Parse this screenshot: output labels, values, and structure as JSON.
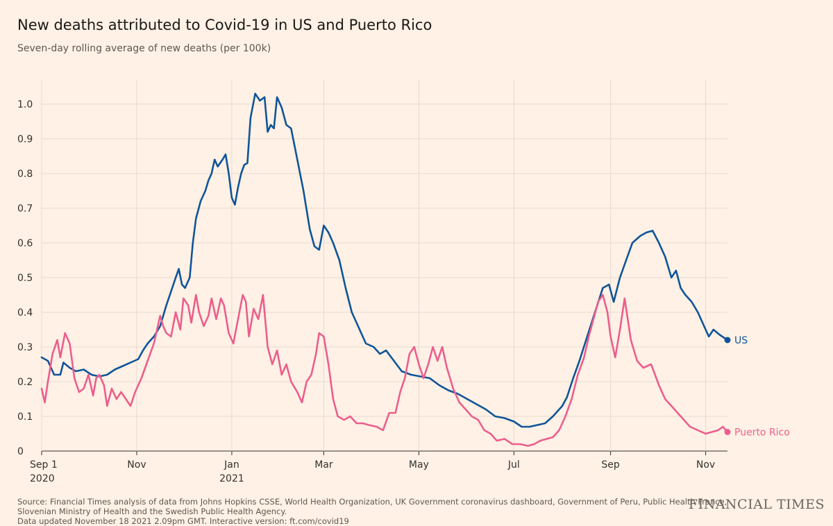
{
  "header": {
    "title": "New deaths attributed to Covid-19 in US and Puerto Rico",
    "subtitle": "Seven-day rolling average of new deaths (per 100k)"
  },
  "footer": {
    "source_line1": "Source: Financial Times analysis of data from Johns Hopkins CSSE, World Health Organization, UK Government coronavirus dashboard, Government of Peru, Public Health France,",
    "source_line2": "Slovenian Ministry of Health and the Swedish Public Health Agency.",
    "updated": "Data updated November 18 2021 2.09pm GMT. Interactive version: ft.com/covid19"
  },
  "logo": "FINANCIAL TIMES",
  "colors": {
    "background": "#fff1e5",
    "grid": "#e6d9ce",
    "us": "#0f5499",
    "puerto_rico": "#eb5e8d"
  },
  "chart_data": {
    "type": "line",
    "title": "New deaths attributed to Covid-19 in US and Puerto Rico",
    "subtitle": "Seven-day rolling average of new deaths (per 100k)",
    "xlabel": "",
    "ylabel": "",
    "x_ticks": [
      {
        "date": "2020-09-01",
        "label": "Sep 1",
        "sublabel": "2020"
      },
      {
        "date": "2020-11-01",
        "label": "Nov",
        "sublabel": ""
      },
      {
        "date": "2021-01-01",
        "label": "Jan",
        "sublabel": "2021"
      },
      {
        "date": "2021-03-01",
        "label": "Mar",
        "sublabel": ""
      },
      {
        "date": "2021-05-01",
        "label": "May",
        "sublabel": ""
      },
      {
        "date": "2021-07-01",
        "label": "Jul",
        "sublabel": ""
      },
      {
        "date": "2021-09-01",
        "label": "Sep",
        "sublabel": ""
      },
      {
        "date": "2021-11-01",
        "label": "Nov",
        "sublabel": ""
      }
    ],
    "xlim": [
      "2020-09-01",
      "2021-11-15"
    ],
    "ylim": [
      0,
      1.05
    ],
    "y_ticks": [
      0,
      0.1,
      0.2,
      0.3,
      0.4,
      0.5,
      0.6,
      0.7,
      0.8,
      0.9,
      1.0
    ],
    "y_tick_labels": [
      "0",
      "0.1",
      "0.2",
      "0.3",
      "0.4",
      "0.5",
      "0.6",
      "0.7",
      "0.8",
      "0.9",
      "1.0"
    ],
    "grid": true,
    "legend": "end-of-line labels",
    "series": [
      {
        "name": "US",
        "color": "#0f5499",
        "points": [
          [
            "2020-09-01",
            0.27
          ],
          [
            "2020-09-05",
            0.26
          ],
          [
            "2020-09-09",
            0.22
          ],
          [
            "2020-09-13",
            0.22
          ],
          [
            "2020-09-15",
            0.255
          ],
          [
            "2020-09-19",
            0.24
          ],
          [
            "2020-09-23",
            0.23
          ],
          [
            "2020-09-28",
            0.235
          ],
          [
            "2020-10-03",
            0.22
          ],
          [
            "2020-10-08",
            0.215
          ],
          [
            "2020-10-13",
            0.22
          ],
          [
            "2020-10-18",
            0.235
          ],
          [
            "2020-10-23",
            0.245
          ],
          [
            "2020-10-28",
            0.255
          ],
          [
            "2020-11-02",
            0.265
          ],
          [
            "2020-11-05",
            0.29
          ],
          [
            "2020-11-08",
            0.31
          ],
          [
            "2020-11-12",
            0.33
          ],
          [
            "2020-11-16",
            0.36
          ],
          [
            "2020-11-20",
            0.42
          ],
          [
            "2020-11-23",
            0.46
          ],
          [
            "2020-11-26",
            0.5
          ],
          [
            "2020-11-28",
            0.525
          ],
          [
            "2020-11-30",
            0.48
          ],
          [
            "2020-12-02",
            0.47
          ],
          [
            "2020-12-05",
            0.5
          ],
          [
            "2020-12-07",
            0.6
          ],
          [
            "2020-12-09",
            0.67
          ],
          [
            "2020-12-12",
            0.72
          ],
          [
            "2020-12-15",
            0.75
          ],
          [
            "2020-12-17",
            0.78
          ],
          [
            "2020-12-19",
            0.8
          ],
          [
            "2020-12-21",
            0.84
          ],
          [
            "2020-12-23",
            0.82
          ],
          [
            "2020-12-26",
            0.84
          ],
          [
            "2020-12-28",
            0.855
          ],
          [
            "2020-12-30",
            0.8
          ],
          [
            "2021-01-01",
            0.73
          ],
          [
            "2021-01-03",
            0.71
          ],
          [
            "2021-01-05",
            0.76
          ],
          [
            "2021-01-07",
            0.8
          ],
          [
            "2021-01-09",
            0.825
          ],
          [
            "2021-01-11",
            0.83
          ],
          [
            "2021-01-13",
            0.96
          ],
          [
            "2021-01-16",
            1.03
          ],
          [
            "2021-01-19",
            1.01
          ],
          [
            "2021-01-22",
            1.02
          ],
          [
            "2021-01-24",
            0.92
          ],
          [
            "2021-01-26",
            0.94
          ],
          [
            "2021-01-28",
            0.93
          ],
          [
            "2021-01-30",
            1.02
          ],
          [
            "2021-02-02",
            0.99
          ],
          [
            "2021-02-05",
            0.94
          ],
          [
            "2021-02-08",
            0.93
          ],
          [
            "2021-02-12",
            0.84
          ],
          [
            "2021-02-16",
            0.75
          ],
          [
            "2021-02-20",
            0.64
          ],
          [
            "2021-02-23",
            0.59
          ],
          [
            "2021-02-26",
            0.58
          ],
          [
            "2021-03-01",
            0.65
          ],
          [
            "2021-03-04",
            0.63
          ],
          [
            "2021-03-07",
            0.6
          ],
          [
            "2021-03-11",
            0.55
          ],
          [
            "2021-03-15",
            0.47
          ],
          [
            "2021-03-19",
            0.4
          ],
          [
            "2021-03-24",
            0.35
          ],
          [
            "2021-03-28",
            0.31
          ],
          [
            "2021-04-02",
            0.3
          ],
          [
            "2021-04-06",
            0.28
          ],
          [
            "2021-04-10",
            0.29
          ],
          [
            "2021-04-15",
            0.26
          ],
          [
            "2021-04-20",
            0.23
          ],
          [
            "2021-04-26",
            0.22
          ],
          [
            "2021-05-02",
            0.215
          ],
          [
            "2021-05-08",
            0.21
          ],
          [
            "2021-05-14",
            0.19
          ],
          [
            "2021-05-20",
            0.175
          ],
          [
            "2021-05-26",
            0.165
          ],
          [
            "2021-06-01",
            0.15
          ],
          [
            "2021-06-07",
            0.135
          ],
          [
            "2021-06-13",
            0.12
          ],
          [
            "2021-06-19",
            0.1
          ],
          [
            "2021-06-25",
            0.095
          ],
          [
            "2021-07-01",
            0.085
          ],
          [
            "2021-07-06",
            0.07
          ],
          [
            "2021-07-11",
            0.07
          ],
          [
            "2021-07-16",
            0.075
          ],
          [
            "2021-07-21",
            0.08
          ],
          [
            "2021-07-26",
            0.1
          ],
          [
            "2021-08-01",
            0.13
          ],
          [
            "2021-08-04",
            0.155
          ],
          [
            "2021-08-08",
            0.21
          ],
          [
            "2021-08-12",
            0.26
          ],
          [
            "2021-08-17",
            0.33
          ],
          [
            "2021-08-22",
            0.4
          ],
          [
            "2021-08-27",
            0.47
          ],
          [
            "2021-08-31",
            0.48
          ],
          [
            "2021-09-03",
            0.43
          ],
          [
            "2021-09-07",
            0.5
          ],
          [
            "2021-09-11",
            0.55
          ],
          [
            "2021-09-15",
            0.6
          ],
          [
            "2021-09-20",
            0.62
          ],
          [
            "2021-09-24",
            0.63
          ],
          [
            "2021-09-28",
            0.635
          ],
          [
            "2021-10-02",
            0.6
          ],
          [
            "2021-10-06",
            0.56
          ],
          [
            "2021-10-10",
            0.5
          ],
          [
            "2021-10-13",
            0.52
          ],
          [
            "2021-10-16",
            0.47
          ],
          [
            "2021-10-19",
            0.45
          ],
          [
            "2021-10-23",
            0.43
          ],
          [
            "2021-10-27",
            0.4
          ],
          [
            "2021-10-31",
            0.36
          ],
          [
            "2021-11-03",
            0.33
          ],
          [
            "2021-11-06",
            0.35
          ],
          [
            "2021-11-10",
            0.335
          ],
          [
            "2021-11-15",
            0.32
          ]
        ]
      },
      {
        "name": "Puerto Rico",
        "color": "#eb5e8d",
        "points": [
          [
            "2020-09-01",
            0.18
          ],
          [
            "2020-09-03",
            0.14
          ],
          [
            "2020-09-05",
            0.2
          ],
          [
            "2020-09-08",
            0.28
          ],
          [
            "2020-09-11",
            0.32
          ],
          [
            "2020-09-13",
            0.27
          ],
          [
            "2020-09-16",
            0.34
          ],
          [
            "2020-09-19",
            0.31
          ],
          [
            "2020-09-22",
            0.21
          ],
          [
            "2020-09-25",
            0.17
          ],
          [
            "2020-09-28",
            0.18
          ],
          [
            "2020-10-01",
            0.22
          ],
          [
            "2020-10-04",
            0.16
          ],
          [
            "2020-10-06",
            0.21
          ],
          [
            "2020-10-08",
            0.22
          ],
          [
            "2020-10-11",
            0.19
          ],
          [
            "2020-10-13",
            0.13
          ],
          [
            "2020-10-16",
            0.18
          ],
          [
            "2020-10-19",
            0.15
          ],
          [
            "2020-10-22",
            0.17
          ],
          [
            "2020-10-25",
            0.15
          ],
          [
            "2020-10-28",
            0.13
          ],
          [
            "2020-10-31",
            0.17
          ],
          [
            "2020-11-04",
            0.21
          ],
          [
            "2020-11-08",
            0.26
          ],
          [
            "2020-11-12",
            0.31
          ],
          [
            "2020-11-16",
            0.39
          ],
          [
            "2020-11-18",
            0.36
          ],
          [
            "2020-11-20",
            0.34
          ],
          [
            "2020-11-23",
            0.33
          ],
          [
            "2020-11-26",
            0.4
          ],
          [
            "2020-11-29",
            0.35
          ],
          [
            "2020-12-01",
            0.44
          ],
          [
            "2020-12-04",
            0.42
          ],
          [
            "2020-12-06",
            0.37
          ],
          [
            "2020-12-09",
            0.45
          ],
          [
            "2020-12-11",
            0.4
          ],
          [
            "2020-12-14",
            0.36
          ],
          [
            "2020-12-17",
            0.39
          ],
          [
            "2020-12-19",
            0.44
          ],
          [
            "2020-12-22",
            0.38
          ],
          [
            "2020-12-25",
            0.44
          ],
          [
            "2020-12-27",
            0.42
          ],
          [
            "2020-12-30",
            0.34
          ],
          [
            "2021-01-02",
            0.31
          ],
          [
            "2021-01-05",
            0.38
          ],
          [
            "2021-01-08",
            0.45
          ],
          [
            "2021-01-10",
            0.43
          ],
          [
            "2021-01-12",
            0.33
          ],
          [
            "2021-01-15",
            0.41
          ],
          [
            "2021-01-18",
            0.38
          ],
          [
            "2021-01-21",
            0.45
          ],
          [
            "2021-01-24",
            0.3
          ],
          [
            "2021-01-27",
            0.25
          ],
          [
            "2021-01-30",
            0.29
          ],
          [
            "2021-02-02",
            0.22
          ],
          [
            "2021-02-05",
            0.25
          ],
          [
            "2021-02-08",
            0.2
          ],
          [
            "2021-02-12",
            0.17
          ],
          [
            "2021-02-15",
            0.14
          ],
          [
            "2021-02-18",
            0.2
          ],
          [
            "2021-02-21",
            0.22
          ],
          [
            "2021-02-24",
            0.28
          ],
          [
            "2021-02-26",
            0.34
          ],
          [
            "2021-03-01",
            0.33
          ],
          [
            "2021-03-04",
            0.25
          ],
          [
            "2021-03-07",
            0.15
          ],
          [
            "2021-03-10",
            0.1
          ],
          [
            "2021-03-14",
            0.09
          ],
          [
            "2021-03-18",
            0.1
          ],
          [
            "2021-03-22",
            0.08
          ],
          [
            "2021-03-26",
            0.08
          ],
          [
            "2021-03-30",
            0.075
          ],
          [
            "2021-04-04",
            0.07
          ],
          [
            "2021-04-08",
            0.06
          ],
          [
            "2021-04-12",
            0.11
          ],
          [
            "2021-04-16",
            0.11
          ],
          [
            "2021-04-19",
            0.17
          ],
          [
            "2021-04-22",
            0.21
          ],
          [
            "2021-04-25",
            0.28
          ],
          [
            "2021-04-28",
            0.3
          ],
          [
            "2021-05-01",
            0.25
          ],
          [
            "2021-05-04",
            0.21
          ],
          [
            "2021-05-07",
            0.25
          ],
          [
            "2021-05-10",
            0.3
          ],
          [
            "2021-05-13",
            0.26
          ],
          [
            "2021-05-16",
            0.3
          ],
          [
            "2021-05-19",
            0.24
          ],
          [
            "2021-05-23",
            0.18
          ],
          [
            "2021-05-27",
            0.14
          ],
          [
            "2021-05-31",
            0.12
          ],
          [
            "2021-06-04",
            0.1
          ],
          [
            "2021-06-08",
            0.09
          ],
          [
            "2021-06-12",
            0.06
          ],
          [
            "2021-06-16",
            0.05
          ],
          [
            "2021-06-20",
            0.03
          ],
          [
            "2021-06-25",
            0.035
          ],
          [
            "2021-06-30",
            0.02
          ],
          [
            "2021-07-05",
            0.02
          ],
          [
            "2021-07-10",
            0.015
          ],
          [
            "2021-07-14",
            0.02
          ],
          [
            "2021-07-18",
            0.03
          ],
          [
            "2021-07-22",
            0.035
          ],
          [
            "2021-07-26",
            0.04
          ],
          [
            "2021-07-30",
            0.06
          ],
          [
            "2021-08-03",
            0.1
          ],
          [
            "2021-08-07",
            0.15
          ],
          [
            "2021-08-11",
            0.22
          ],
          [
            "2021-08-15",
            0.27
          ],
          [
            "2021-08-18",
            0.33
          ],
          [
            "2021-08-21",
            0.38
          ],
          [
            "2021-08-24",
            0.43
          ],
          [
            "2021-08-27",
            0.45
          ],
          [
            "2021-08-30",
            0.4
          ],
          [
            "2021-09-01",
            0.33
          ],
          [
            "2021-09-04",
            0.27
          ],
          [
            "2021-09-07",
            0.35
          ],
          [
            "2021-09-10",
            0.44
          ],
          [
            "2021-09-14",
            0.32
          ],
          [
            "2021-09-18",
            0.26
          ],
          [
            "2021-09-22",
            0.24
          ],
          [
            "2021-09-27",
            0.25
          ],
          [
            "2021-10-02",
            0.19
          ],
          [
            "2021-10-06",
            0.15
          ],
          [
            "2021-10-10",
            0.13
          ],
          [
            "2021-10-14",
            0.11
          ],
          [
            "2021-10-18",
            0.09
          ],
          [
            "2021-10-22",
            0.07
          ],
          [
            "2021-10-27",
            0.06
          ],
          [
            "2021-11-01",
            0.05
          ],
          [
            "2021-11-05",
            0.055
          ],
          [
            "2021-11-09",
            0.06
          ],
          [
            "2021-11-12",
            0.07
          ],
          [
            "2021-11-15",
            0.055
          ]
        ]
      }
    ]
  }
}
